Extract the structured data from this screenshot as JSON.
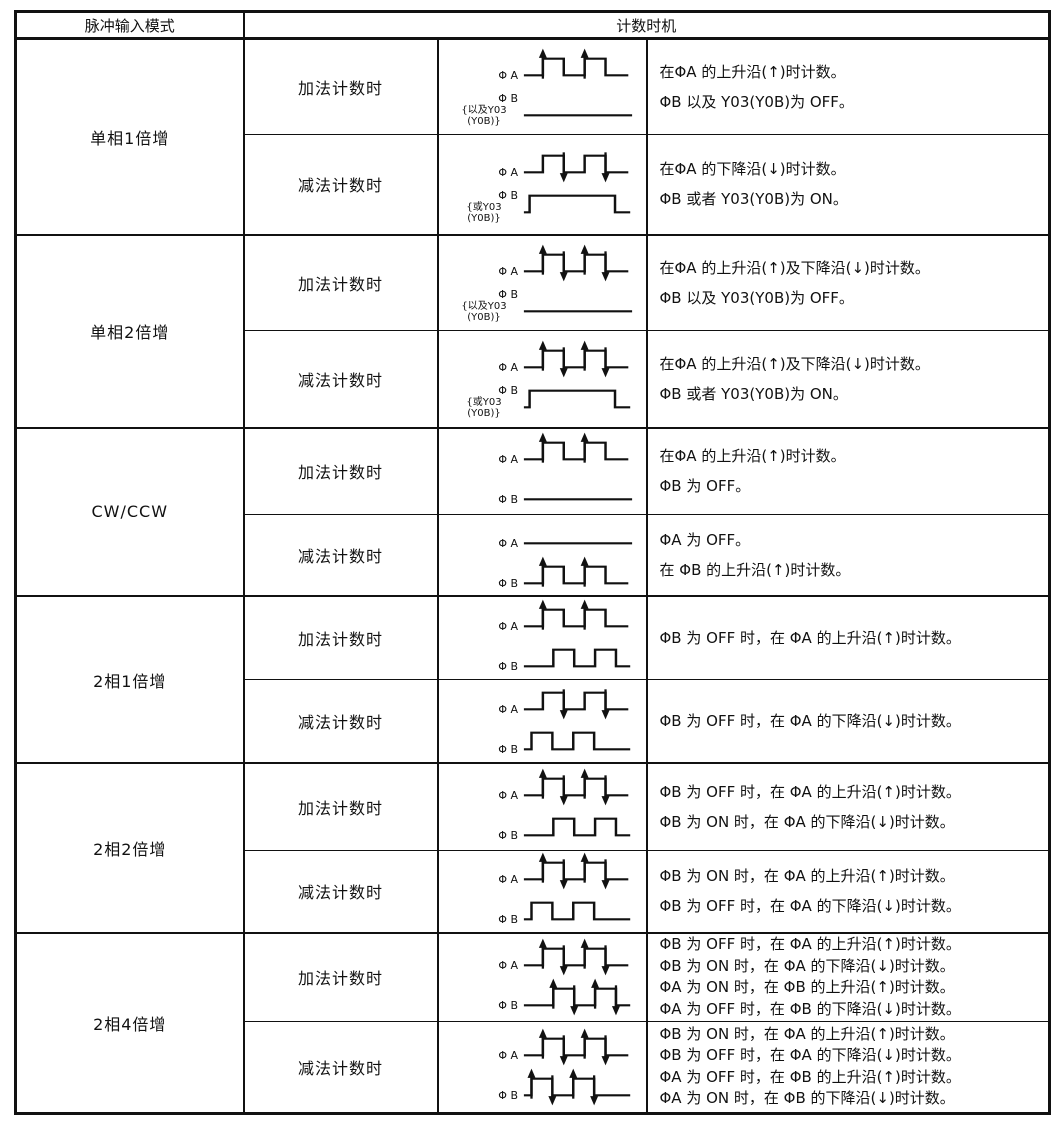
{
  "document": {
    "header": {
      "mode_col": "脉冲输入模式",
      "timing_col": "计数时机"
    },
    "groups": [
      {
        "mode": "单相1倍增",
        "rows": [
          {
            "op": "加法计数时",
            "waves": [
              {
                "label": "Φ A",
                "shape": "pulses",
                "phase": "normal",
                "arrows": "rise"
              },
              {
                "label": "Φ B",
                "sublabel": [
                  "{以及Y03",
                  "(Y0B)}"
                ],
                "shape": "flat-low",
                "arrows": "none"
              }
            ],
            "desc": [
              "在ΦA 的上升沿(↑)时计数。",
              "ΦB 以及 Y03(Y0B)为 OFF。"
            ]
          },
          {
            "op": "减法计数时",
            "waves": [
              {
                "label": "Φ A",
                "shape": "pulses",
                "phase": "normal",
                "arrows": "fall"
              },
              {
                "label": "Φ B",
                "sublabel": [
                  "{或Y03",
                  "(Y0B)}"
                ],
                "shape": "plateau",
                "arrows": "none"
              }
            ],
            "desc": [
              "在ΦA 的下降沿(↓)时计数。",
              "ΦB 或者 Y03(Y0B)为 ON。"
            ]
          }
        ]
      },
      {
        "mode": "单相2倍增",
        "rows": [
          {
            "op": "加法计数时",
            "waves": [
              {
                "label": "Φ A",
                "shape": "pulses",
                "phase": "normal",
                "arrows": "both"
              },
              {
                "label": "Φ B",
                "sublabel": [
                  "{以及Y03",
                  "(Y0B)}"
                ],
                "shape": "flat-low",
                "arrows": "none"
              }
            ],
            "desc": [
              "在ΦA 的上升沿(↑)及下降沿(↓)时计数。",
              "ΦB 以及 Y03(Y0B)为 OFF。"
            ]
          },
          {
            "op": "减法计数时",
            "waves": [
              {
                "label": "Φ A",
                "shape": "pulses",
                "phase": "normal",
                "arrows": "both"
              },
              {
                "label": "Φ B",
                "sublabel": [
                  "{或Y03",
                  "(Y0B)}"
                ],
                "shape": "plateau",
                "arrows": "none"
              }
            ],
            "desc": [
              "在ΦA 的上升沿(↑)及下降沿(↓)时计数。",
              "ΦB 或者 Y03(Y0B)为 ON。"
            ]
          }
        ]
      },
      {
        "mode": "CW/CCW",
        "rows": [
          {
            "op": "加法计数时",
            "waves": [
              {
                "label": "Φ A",
                "shape": "pulses",
                "phase": "normal",
                "arrows": "rise"
              },
              {
                "label": "Φ B",
                "shape": "flat-low",
                "arrows": "none"
              }
            ],
            "desc": [
              "在ΦA 的上升沿(↑)时计数。",
              "ΦB 为 OFF。"
            ]
          },
          {
            "op": "减法计数时",
            "waves": [
              {
                "label": "Φ A",
                "shape": "flat-low",
                "arrows": "none"
              },
              {
                "label": "Φ B",
                "shape": "pulses",
                "phase": "normal",
                "arrows": "rise"
              }
            ],
            "desc": [
              "ΦA 为 OFF。",
              "在 ΦB 的上升沿(↑)时计数。"
            ]
          }
        ]
      },
      {
        "mode": "2相1倍增",
        "rows": [
          {
            "op": "加法计数时",
            "waves": [
              {
                "label": "Φ A",
                "shape": "pulses",
                "phase": "normal",
                "arrows": "rise"
              },
              {
                "label": "Φ B",
                "shape": "pulses",
                "phase": "delayed",
                "arrows": "none"
              }
            ],
            "desc": [
              "ΦB 为 OFF 时，在 ΦA 的上升沿(↑)时计数。"
            ]
          },
          {
            "op": "减法计数时",
            "waves": [
              {
                "label": "Φ A",
                "shape": "pulses",
                "phase": "normal",
                "arrows": "fall"
              },
              {
                "label": "Φ B",
                "shape": "pulses",
                "phase": "leading",
                "arrows": "none"
              }
            ],
            "desc": [
              "ΦB 为 OFF 时，在 ΦA 的下降沿(↓)时计数。"
            ]
          }
        ]
      },
      {
        "mode": "2相2倍增",
        "rows": [
          {
            "op": "加法计数时",
            "waves": [
              {
                "label": "Φ A",
                "shape": "pulses",
                "phase": "normal",
                "arrows": "both"
              },
              {
                "label": "Φ B",
                "shape": "pulses",
                "phase": "delayed",
                "arrows": "none"
              }
            ],
            "desc": [
              "ΦB 为 OFF 时，在 ΦA 的上升沿(↑)时计数。",
              "ΦB 为 ON 时，在 ΦA 的下降沿(↓)时计数。"
            ]
          },
          {
            "op": "减法计数时",
            "waves": [
              {
                "label": "Φ A",
                "shape": "pulses",
                "phase": "normal",
                "arrows": "both"
              },
              {
                "label": "Φ B",
                "shape": "pulses",
                "phase": "leading",
                "arrows": "none"
              }
            ],
            "desc": [
              "ΦB 为 ON 时，在 ΦA 的上升沿(↑)时计数。",
              "ΦB 为 OFF 时，在 ΦA 的下降沿(↓)时计数。"
            ]
          }
        ]
      },
      {
        "mode": "2相4倍增",
        "rows": [
          {
            "op": "加法计数时",
            "waves": [
              {
                "label": "Φ A",
                "shape": "pulses",
                "phase": "normal",
                "arrows": "both"
              },
              {
                "label": "Φ B",
                "shape": "pulses",
                "phase": "delayed",
                "arrows": "both"
              }
            ],
            "desc": [
              "ΦB 为 OFF 时，在 ΦA 的上升沿(↑)时计数。",
              "ΦB 为 ON 时，在 ΦA 的下降沿(↓)时计数。",
              "ΦA 为 ON 时，在 ΦB 的上升沿(↑)时计数。",
              "ΦA 为 OFF 时，在 ΦB 的下降沿(↓)时计数。"
            ]
          },
          {
            "op": "减法计数时",
            "waves": [
              {
                "label": "Φ A",
                "shape": "pulses",
                "phase": "normal",
                "arrows": "both"
              },
              {
                "label": "Φ B",
                "shape": "pulses",
                "phase": "leading",
                "arrows": "both"
              }
            ],
            "desc": [
              "ΦB 为 ON 时，在 ΦA 的上升沿(↑)时计数。",
              "ΦB 为 OFF 时，在 ΦA 的下降沿(↓)时计数。",
              "ΦA 为 OFF 时，在 ΦB 的上升沿(↑)时计数。",
              "ΦA 为 ON 时，在 ΦB 的下降沿(↓)时计数。"
            ]
          }
        ]
      }
    ]
  }
}
